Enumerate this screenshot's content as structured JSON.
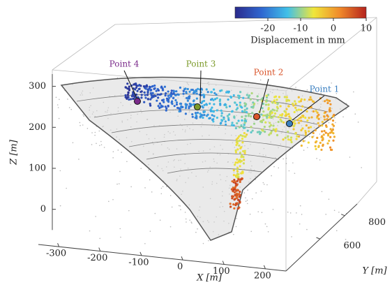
{
  "chart_data": {
    "type": "scatter3d",
    "xlabel": "X [m]",
    "ylabel": "Y [m]",
    "zlabel": "Z [m]",
    "xlim": [
      -350,
      250
    ],
    "xticks": [
      -300,
      -200,
      -100,
      0,
      100,
      200
    ],
    "ylim": [
      300,
      900
    ],
    "yticks": [
      600,
      800
    ],
    "zlim": [
      -50,
      330
    ],
    "zticks": [
      0,
      100,
      200,
      300
    ],
    "colorbar": {
      "label": "Displacement in mm",
      "lim": [
        -30,
        10
      ],
      "ticks": [
        -20,
        -10,
        0,
        10
      ],
      "colors": [
        "#2a2a8c",
        "#2f66d0",
        "#40c0e8",
        "#f0e63a",
        "#f0892a",
        "#b5221d"
      ]
    },
    "annotations": [
      {
        "text": "Point 4",
        "color": "#7a2a8a"
      },
      {
        "text": "Point 3",
        "color": "#7c9a2a"
      },
      {
        "text": "Point 2",
        "color": "#d9542a"
      },
      {
        "text": "Point 1",
        "color": "#3a7fc0"
      }
    ]
  }
}
